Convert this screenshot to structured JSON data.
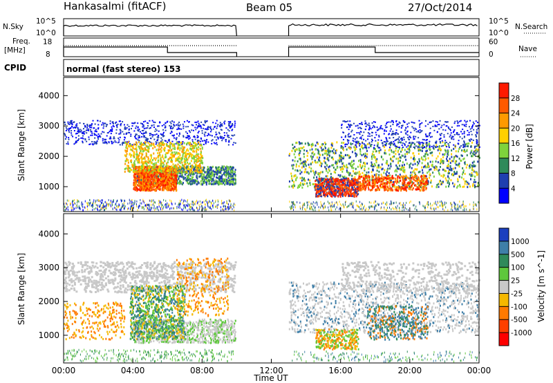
{
  "header": {
    "station": "Hankasalmi (fitACF)",
    "beam": "Beam 05",
    "date": "27/Oct/2014"
  },
  "panels": {
    "nsky_label": "N.Sky",
    "nsearch_label": "N.Search",
    "nsky_ticks": [
      "10^5",
      "10^0"
    ],
    "nsearch_ticks": [
      "10^5",
      "10^0"
    ],
    "freq_label": "Freq.",
    "freq_unit": "[MHz]",
    "freq_ticks": [
      "18",
      "8"
    ],
    "nave_label": "Nave",
    "nave_ticks": [
      "60",
      "0"
    ],
    "cpid_label": "CPID",
    "cpid_text": "normal (fast stereo) 153"
  },
  "chart_data": [
    {
      "type": "heatmap",
      "title": "",
      "quantity": "Power",
      "ylabel": "Slant Range [km]",
      "colorbar_label": "Power [dB]",
      "ylim": [
        180,
        4600
      ],
      "yticks": [
        "4000",
        "3000",
        "2000",
        "1000"
      ],
      "colorbar_ticks": [
        "28",
        "24",
        "20",
        "16",
        "12",
        "8",
        "4"
      ],
      "colorbar_colors": [
        "#ff1a00",
        "#ff5a00",
        "#ff9a00",
        "#ffd000",
        "#7fd23c",
        "#2f8a5a",
        "#1f3fb0",
        "#0000ff"
      ],
      "xlabel": "Time UT",
      "xticks": [
        "00:00",
        "04:00",
        "08:00",
        "12:00",
        "16:00",
        "20:00",
        "00:00"
      ],
      "data_gap_ut": [
        10.0,
        13.0
      ]
    },
    {
      "type": "heatmap",
      "title": "",
      "quantity": "Velocity",
      "ylabel": "Slant Range [km]",
      "colorbar_label": "Velocity [m s^-1]",
      "ylim": [
        180,
        4600
      ],
      "yticks": [
        "4000",
        "3000",
        "2000",
        "1000"
      ],
      "colorbar_ticks": [
        "1000",
        "500",
        "100",
        "25",
        "-25",
        "-100",
        "-500",
        "-1000"
      ],
      "colorbar_colors": [
        "#1b3fbf",
        "#3f7fa8",
        "#2f8a5a",
        "#5ec83c",
        "#c8c8c8",
        "#f5b800",
        "#ff7a00",
        "#ff4000",
        "#ff0000"
      ],
      "xlabel": "Time UT",
      "xticks": [
        "00:00",
        "04:00",
        "08:00",
        "12:00",
        "16:00",
        "20:00",
        "00:00"
      ],
      "data_gap_ut": [
        10.0,
        13.0
      ]
    }
  ]
}
